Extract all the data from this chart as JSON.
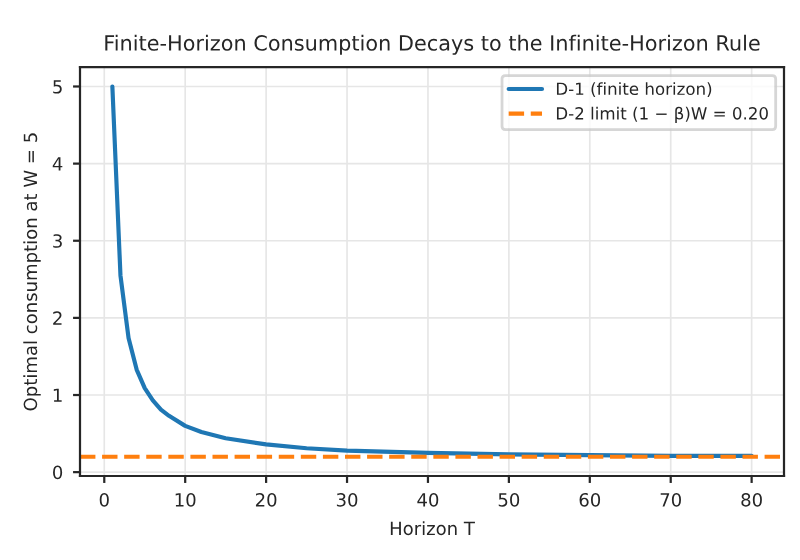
{
  "chart_data": {
    "type": "line",
    "title": "Finite-Horizon Consumption Decays to the Infinite-Horizon Rule",
    "xlabel": "Horizon T",
    "ylabel": "Optimal consumption at W = 5",
    "x": [
      1,
      2,
      3,
      4,
      5,
      6,
      7,
      8,
      10,
      12,
      15,
      20,
      25,
      30,
      40,
      50,
      60,
      70,
      80
    ],
    "series": [
      {
        "name": "D-1 (finite horizon)",
        "color": "#1f77b4",
        "values": [
          5.0,
          2.55,
          1.74,
          1.33,
          1.09,
          0.93,
          0.81,
          0.73,
          0.6,
          0.52,
          0.44,
          0.36,
          0.31,
          0.28,
          0.25,
          0.23,
          0.22,
          0.21,
          0.21
        ]
      }
    ],
    "ref_lines": [
      {
        "axis": "y",
        "value": 0.2,
        "label": "D-2 limit (1 − β)W = 0.20",
        "color": "#ff7f0e",
        "line_style": "dashed"
      }
    ],
    "xlim": [
      -3,
      84
    ],
    "ylim": [
      -0.05,
      5.25
    ],
    "xticks": [
      0,
      10,
      20,
      30,
      40,
      50,
      60,
      70,
      80
    ],
    "yticks": [
      0,
      1,
      2,
      3,
      4,
      5
    ],
    "grid": true,
    "legend": "top right",
    "marker": "none",
    "line_style": "solid"
  }
}
